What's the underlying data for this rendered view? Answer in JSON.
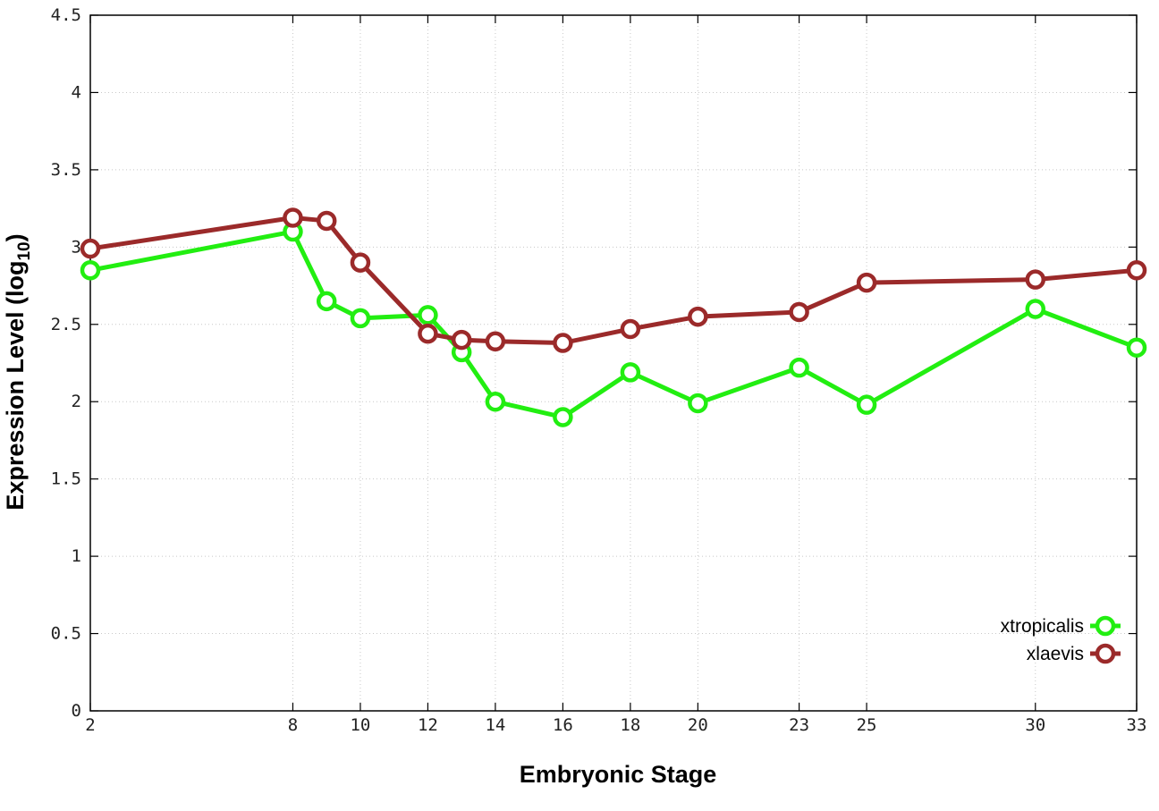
{
  "chart_data": {
    "type": "line",
    "x": [
      2,
      8,
      9,
      10,
      12,
      13,
      14,
      16,
      18,
      20,
      23,
      25,
      30,
      33
    ],
    "x_tick_labels": [
      "2",
      "8",
      "10",
      "12",
      "14",
      "16",
      "18",
      "20",
      "23",
      "25",
      "30",
      "33"
    ],
    "y_tick_labels": [
      "0",
      "0.5",
      "1",
      "1.5",
      "2",
      "2.5",
      "3",
      "3.5",
      "4",
      "4.5"
    ],
    "xlabel": "Embryonic Stage",
    "ylabel": "Expression Level (log",
    "ylabel_subscript": "10",
    "ylabel_suffix": ")",
    "ylim": [
      0,
      4.5
    ],
    "grid": true,
    "legend_placement": "bottom-right",
    "series": [
      {
        "name": "xtropicalis",
        "color": "#22ee11",
        "values": [
          2.85,
          3.1,
          2.65,
          2.54,
          2.56,
          2.32,
          2.0,
          1.9,
          2.19,
          1.99,
          2.22,
          1.98,
          2.6,
          2.35
        ]
      },
      {
        "name": "xlaevis",
        "color": "#9b2a2a",
        "values": [
          2.99,
          3.19,
          3.17,
          2.9,
          2.44,
          2.4,
          2.39,
          2.38,
          2.47,
          2.55,
          2.58,
          2.77,
          2.79,
          2.85
        ]
      }
    ]
  }
}
